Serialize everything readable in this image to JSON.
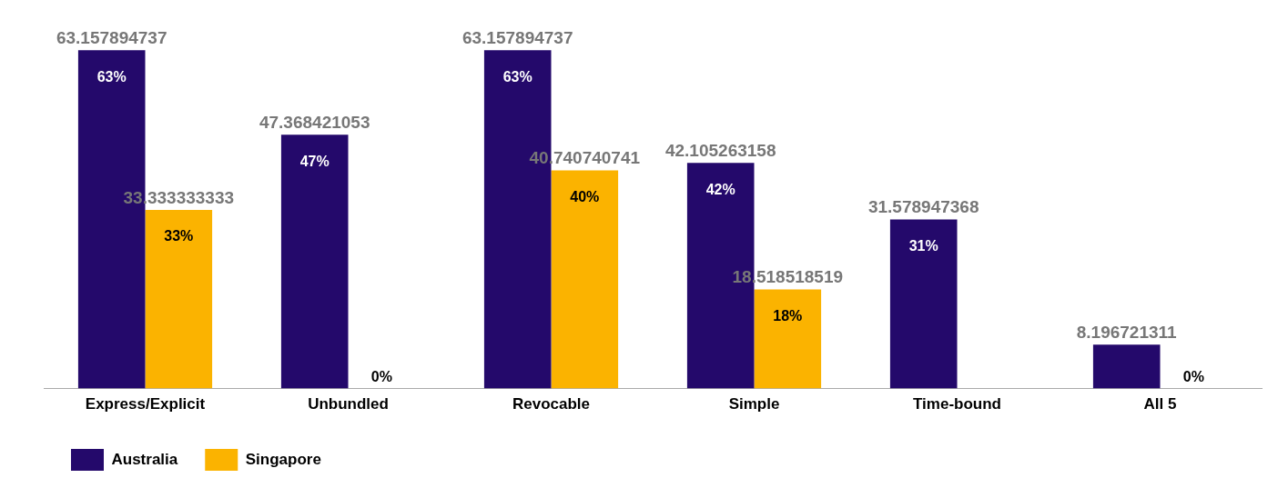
{
  "chart_data": {
    "type": "bar",
    "categories": [
      "Express/Explicit",
      "Unbundled",
      "Revocable",
      "Simple",
      "Time-bound",
      "All 5"
    ],
    "series": [
      {
        "name": "Australia",
        "color": "#24096b",
        "values": [
          63.157894737,
          47.368421053,
          63.157894737,
          42.105263158,
          31.578947368,
          8.196721311
        ],
        "value_labels": [
          "63.157894737",
          "47.368421053",
          "63.157894737",
          "42.105263158",
          "31.578947368",
          "8.196721311"
        ]
      },
      {
        "name": "Singapore",
        "color": "#fbb300",
        "values": [
          33.333333333,
          0,
          40.740740741,
          18.518518519,
          null,
          0
        ],
        "value_labels": [
          "33.333333333",
          null,
          "40.740740741",
          "18.518518519",
          null,
          null
        ]
      }
    ],
    "annotations": [
      {
        "text": "63%",
        "x": "Express/Explicit",
        "y": 63.157894737
      },
      {
        "text": "33%",
        "x": "Express/Explicit",
        "y": 33.333333333
      },
      {
        "text": "47%",
        "x": "Unbundled",
        "y": 47.368421053
      },
      {
        "text": "0%",
        "x": "Unbundled",
        "y": 0
      },
      {
        "text": "63%",
        "x": "Revocable",
        "y": 63.157894737
      },
      {
        "text": "40%",
        "x": "Revocable",
        "y": 40.740740741
      },
      {
        "text": "42%",
        "x": "Simple",
        "y": 42.105263158
      },
      {
        "text": "18%",
        "x": "Simple",
        "y": 18.518518519
      },
      {
        "text": "31%",
        "x": "Time-bound",
        "y": 31.578947368
      },
      {
        "text": "0%",
        "x": "All 5",
        "y": 0
      }
    ],
    "legend": "bottom left",
    "grid": false
  }
}
